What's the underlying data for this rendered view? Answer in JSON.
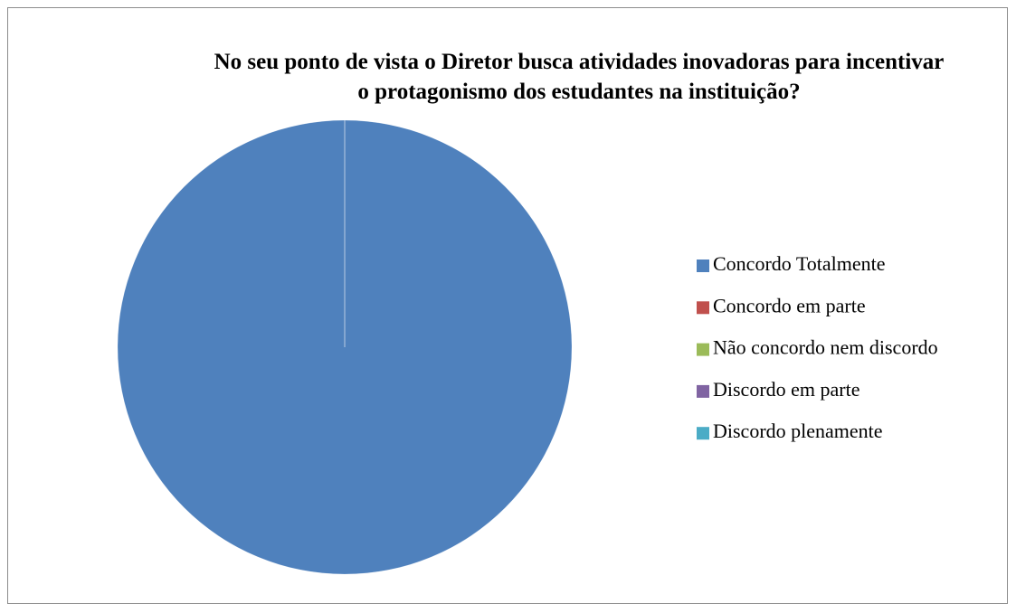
{
  "chart_data": {
    "type": "pie",
    "title": "No seu ponto de vista o Diretor busca atividades inovadoras para incentivar o protagonismo dos estudantes na instituição?",
    "categories": [
      "Concordo Totalmente",
      "Concordo em parte",
      "Não concordo nem discordo",
      "Discordo em parte",
      "Discordo plenamente"
    ],
    "values": [
      100,
      0,
      0,
      0,
      0
    ],
    "colors": [
      "#4f81bd",
      "#c0504d",
      "#9bbb59",
      "#8064a2",
      "#4bacc6"
    ],
    "legend": "right"
  }
}
